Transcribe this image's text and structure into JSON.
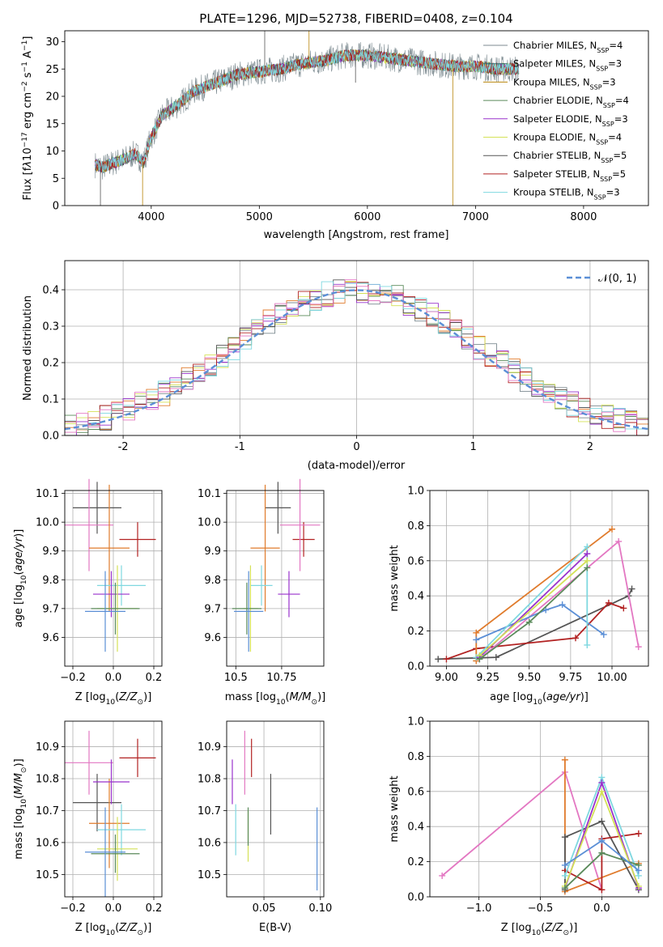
{
  "chart_data": [
    {
      "id": "spectrum",
      "type": "line",
      "title": "PLATE=1296, MJD=52738, FIBERID=0408, z=0.104",
      "xlabel": "wavelength [Angstrom, rest frame]",
      "ylabel": "Flux [f_λ10^-17 erg cm^-2 s^-1 A^-1]",
      "xlim": [
        3200,
        8600
      ],
      "ylim": [
        0,
        32
      ],
      "xticks": [
        4000,
        5000,
        6000,
        7000,
        8000
      ],
      "yticks": [
        0,
        5,
        10,
        15,
        20,
        25,
        30
      ],
      "grid": false,
      "legend_position": "right",
      "continuum": {
        "x": [
          3480,
          3550,
          3650,
          3750,
          3850,
          3930,
          3990,
          4100,
          4250,
          4400,
          4600,
          4800,
          5000,
          5200,
          5400,
          5600,
          5800,
          6000,
          6200,
          6400,
          6600,
          6800,
          7000,
          7200,
          7400
        ],
        "y": [
          7.5,
          7.0,
          7.8,
          8.5,
          9.5,
          8.0,
          12.0,
          16.5,
          18.5,
          21.0,
          22.5,
          24.0,
          24.5,
          25.0,
          26.0,
          26.5,
          27.5,
          27.5,
          27.0,
          26.5,
          26.0,
          25.5,
          25.5,
          25.0,
          25.0
        ]
      },
      "series": [
        {
          "name": "Chabrier MILES, N$_{SSP}$=4",
          "color": "#7c8a90"
        },
        {
          "name": "Salpeter MILES, N$_{SSP}$=3",
          "color": "#2d6a6a"
        },
        {
          "name": "Kroupa MILES, N$_{SSP}$=3",
          "color": "#b8860b"
        },
        {
          "name": "Chabrier ELODIE, N$_{SSP}$=4",
          "color": "#5a8a5a"
        },
        {
          "name": "Salpeter ELODIE, N$_{SSP}$=3",
          "color": "#9932cc"
        },
        {
          "name": "Kroupa ELODIE, N$_{SSP}$=4",
          "color": "#d4e157"
        },
        {
          "name": "Chabrier STELIB, N$_{SSP}$=5",
          "color": "#555555"
        },
        {
          "name": "Salpeter STELIB, N$_{SSP}$=5",
          "color": "#b22222"
        },
        {
          "name": "Kroupa STELIB, N$_{SSP}$=3",
          "color": "#7fd8e0"
        }
      ]
    },
    {
      "id": "residuals",
      "type": "histogram",
      "xlabel": "(data-model)/error",
      "ylabel": "Normed distribution",
      "xlim": [
        -2.5,
        2.5
      ],
      "ylim": [
        0,
        0.48
      ],
      "xticks": [
        -2,
        -1,
        0,
        1,
        2
      ],
      "yticks": [
        0.0,
        0.1,
        0.2,
        0.3,
        0.4
      ],
      "grid": true,
      "bin_width": 0.1,
      "legend_position": "top-right",
      "gaussian_label": "$\\mathcal{N}(0,1)$",
      "gaussian_color": "#5b8fd6",
      "histogram_colors": [
        "#7c8a90",
        "#e07b2c",
        "#5a8a5a",
        "#9932cc",
        "#d4e157",
        "#555555",
        "#b22222",
        "#7fd8e0",
        "#e377c2"
      ]
    },
    {
      "id": "age-vs-Z",
      "type": "scatter",
      "xlabel": "Z [log10(Z/Z⊙)]",
      "ylabel": "age  [log10(age/yr)]",
      "xlim": [
        -0.24,
        0.24
      ],
      "ylim": [
        9.5,
        10.11
      ],
      "xticks": [
        -0.2,
        0.0,
        0.2
      ],
      "xticklabels": [
        "−0.2",
        "0.0",
        "0.2"
      ],
      "yticks": [
        9.6,
        9.7,
        9.8,
        9.9,
        10.0,
        10.1
      ],
      "grid": true,
      "points": [
        {
          "x": 0.12,
          "xerr": 0.09,
          "y": 9.94,
          "yerr": 0.06,
          "color": "#b22222"
        },
        {
          "x": -0.08,
          "xerr": 0.12,
          "y": 10.05,
          "yerr": 0.09,
          "color": "#555555"
        },
        {
          "x": -0.12,
          "xerr": 0.12,
          "y": 9.99,
          "yerr": 0.16,
          "color": "#e377c2"
        },
        {
          "x": -0.02,
          "xerr": 0.1,
          "y": 9.91,
          "yerr": 0.22,
          "color": "#e07b2c"
        },
        {
          "x": 0.04,
          "xerr": 0.12,
          "y": 9.78,
          "yerr": 0.07,
          "color": "#7fd8e0"
        },
        {
          "x": -0.01,
          "xerr": 0.09,
          "y": 9.75,
          "yerr": 0.08,
          "color": "#9932cc"
        },
        {
          "x": 0.02,
          "xerr": 0.1,
          "y": 9.7,
          "yerr": 0.15,
          "color": "#d4e157"
        },
        {
          "x": 0.01,
          "xerr": 0.12,
          "y": 9.7,
          "yerr": 0.09,
          "color": "#5a8a5a"
        },
        {
          "x": -0.04,
          "xerr": 0.1,
          "y": 9.69,
          "yerr": 0.14,
          "color": "#5b8fd6"
        }
      ]
    },
    {
      "id": "age-vs-mass",
      "type": "scatter",
      "xlabel": "mass [log10(M/M⊙)]",
      "ylabel": "",
      "xlim": [
        10.45,
        10.98
      ],
      "ylim": [
        9.5,
        10.11
      ],
      "xticks": [
        10.5,
        10.75
      ],
      "yticks": [
        9.6,
        9.7,
        9.8,
        9.9,
        10.0,
        10.1
      ],
      "grid": true,
      "points": [
        {
          "x": 10.87,
          "xerr": 0.06,
          "y": 9.94,
          "yerr": 0.06,
          "color": "#b22222"
        },
        {
          "x": 10.73,
          "xerr": 0.07,
          "y": 10.05,
          "yerr": 0.09,
          "color": "#555555"
        },
        {
          "x": 10.85,
          "xerr": 0.11,
          "y": 9.99,
          "yerr": 0.16,
          "color": "#e377c2"
        },
        {
          "x": 10.66,
          "xerr": 0.08,
          "y": 9.91,
          "yerr": 0.22,
          "color": "#e07b2c"
        },
        {
          "x": 10.64,
          "xerr": 0.06,
          "y": 9.78,
          "yerr": 0.07,
          "color": "#7fd8e0"
        },
        {
          "x": 10.79,
          "xerr": 0.06,
          "y": 9.75,
          "yerr": 0.08,
          "color": "#9932cc"
        },
        {
          "x": 10.58,
          "xerr": 0.04,
          "y": 9.7,
          "yerr": 0.15,
          "color": "#d4e157"
        },
        {
          "x": 10.56,
          "xerr": 0.08,
          "y": 9.7,
          "yerr": 0.09,
          "color": "#5a8a5a"
        },
        {
          "x": 10.57,
          "xerr": 0.08,
          "y": 9.69,
          "yerr": 0.14,
          "color": "#5b8fd6"
        }
      ]
    },
    {
      "id": "weight-vs-age",
      "type": "line",
      "xlabel": "age  [log10(age/yr)]",
      "ylabel": "mass weight",
      "xlim": [
        8.9,
        10.22
      ],
      "ylim": [
        0,
        1.0
      ],
      "xticks": [
        9.0,
        9.25,
        9.5,
        9.75,
        10.0
      ],
      "xticklabels": [
        "9.00",
        "9.25",
        "9.50",
        "9.75",
        "10.00"
      ],
      "yticks": [
        0.0,
        0.2,
        0.4,
        0.6,
        0.8,
        1.0
      ],
      "grid": true,
      "series": [
        {
          "color": "#555555",
          "points": [
            [
              8.95,
              0.04
            ],
            [
              9.3,
              0.05
            ],
            [
              10.1,
              0.4
            ],
            [
              10.12,
              0.44
            ]
          ]
        },
        {
          "color": "#b22222",
          "points": [
            [
              9.0,
              0.04
            ],
            [
              9.18,
              0.1
            ],
            [
              9.78,
              0.16
            ],
            [
              9.98,
              0.36
            ],
            [
              10.07,
              0.33
            ]
          ]
        },
        {
          "color": "#e07b2c",
          "points": [
            [
              9.18,
              0.03
            ],
            [
              9.18,
              0.19
            ],
            [
              10.0,
              0.78
            ]
          ]
        },
        {
          "color": "#e377c2",
          "points": [
            [
              9.2,
              0.04
            ],
            [
              10.04,
              0.71
            ],
            [
              10.16,
              0.11
            ]
          ]
        },
        {
          "color": "#5b8fd6",
          "points": [
            [
              9.18,
              0.15
            ],
            [
              9.6,
              0.32
            ],
            [
              9.7,
              0.35
            ],
            [
              9.95,
              0.18
            ]
          ]
        },
        {
          "color": "#7fd8e0",
          "points": [
            [
              9.18,
              0.05
            ],
            [
              9.85,
              0.68
            ],
            [
              9.85,
              0.12
            ]
          ]
        },
        {
          "color": "#9932cc",
          "points": [
            [
              9.2,
              0.05
            ],
            [
              9.85,
              0.64
            ]
          ]
        },
        {
          "color": "#d4e157",
          "points": [
            [
              9.2,
              0.06
            ],
            [
              9.85,
              0.6
            ]
          ]
        },
        {
          "color": "#5a8a5a",
          "points": [
            [
              9.2,
              0.04
            ],
            [
              9.5,
              0.25
            ],
            [
              9.85,
              0.56
            ]
          ]
        }
      ]
    },
    {
      "id": "mass-vs-Z",
      "type": "scatter",
      "xlabel": "Z [log10(Z/Z⊙)]",
      "ylabel": "mass [log10(M/M⊙)]",
      "xlim": [
        -0.24,
        0.24
      ],
      "ylim": [
        10.43,
        10.98
      ],
      "xticks": [
        -0.2,
        0.0,
        0.2
      ],
      "xticklabels": [
        "−0.2",
        "0.0",
        "0.2"
      ],
      "yticks": [
        10.5,
        10.6,
        10.7,
        10.8,
        10.9
      ],
      "grid": true,
      "points": [
        {
          "x": 0.12,
          "xerr": 0.09,
          "y": 10.865,
          "yerr": 0.06,
          "color": "#b22222"
        },
        {
          "x": -0.08,
          "xerr": 0.12,
          "y": 10.725,
          "yerr": 0.09,
          "color": "#555555"
        },
        {
          "x": -0.12,
          "xerr": 0.12,
          "y": 10.85,
          "yerr": 0.1,
          "color": "#e377c2"
        },
        {
          "x": -0.02,
          "xerr": 0.1,
          "y": 10.66,
          "yerr": 0.14,
          "color": "#e07b2c"
        },
        {
          "x": 0.04,
          "xerr": 0.12,
          "y": 10.64,
          "yerr": 0.08,
          "color": "#7fd8e0"
        },
        {
          "x": -0.01,
          "xerr": 0.09,
          "y": 10.79,
          "yerr": 0.07,
          "color": "#9932cc"
        },
        {
          "x": 0.02,
          "xerr": 0.1,
          "y": 10.58,
          "yerr": 0.1,
          "color": "#d4e157"
        },
        {
          "x": 0.01,
          "xerr": 0.12,
          "y": 10.565,
          "yerr": 0.06,
          "color": "#5a8a5a"
        },
        {
          "x": -0.04,
          "xerr": 0.1,
          "y": 10.57,
          "yerr": 0.14,
          "color": "#5b8fd6"
        }
      ]
    },
    {
      "id": "mass-vs-ebv",
      "type": "scatter",
      "xlabel": "E(B-V)",
      "ylabel": "",
      "xlim": [
        0.017,
        0.103
      ],
      "ylim": [
        10.43,
        10.98
      ],
      "xticks": [
        0.05,
        0.1
      ],
      "xticklabels": [
        "0.05",
        "0.10"
      ],
      "yticks": [
        10.5,
        10.6,
        10.7,
        10.8,
        10.9
      ],
      "grid": true,
      "points": [
        {
          "x": 0.039,
          "xerr": 0,
          "y": 10.865,
          "yerr": 0.06,
          "color": "#b22222"
        },
        {
          "x": 0.056,
          "xerr": 0,
          "y": 10.72,
          "yerr": 0.095,
          "color": "#555555"
        },
        {
          "x": 0.033,
          "xerr": 0,
          "y": 10.85,
          "yerr": 0.1,
          "color": "#e377c2"
        },
        {
          "x": 0.036,
          "xerr": 0,
          "y": 10.62,
          "yerr": 0.08,
          "color": "#d4e157"
        },
        {
          "x": 0.022,
          "xerr": 0,
          "y": 10.79,
          "yerr": 0.07,
          "color": "#9932cc"
        },
        {
          "x": 0.025,
          "xerr": 0,
          "y": 10.64,
          "yerr": 0.08,
          "color": "#7fd8e0"
        },
        {
          "x": 0.036,
          "xerr": 0,
          "y": 10.65,
          "yerr": 0.06,
          "color": "#5a8a5a"
        },
        {
          "x": 0.097,
          "xerr": 0,
          "y": 10.58,
          "yerr": 0.13,
          "color": "#5b8fd6"
        }
      ]
    },
    {
      "id": "weight-vs-Z",
      "type": "line",
      "xlabel": "Z [log10(Z/Z⊙)]",
      "ylabel": "mass weight",
      "xlim": [
        -1.4,
        0.38
      ],
      "ylim": [
        0,
        1.0
      ],
      "xticks": [
        -1.0,
        -0.5,
        0.0
      ],
      "xticklabels": [
        "−1.0",
        "−0.5",
        "0.0"
      ],
      "yticks": [
        0.0,
        0.2,
        0.4,
        0.6,
        0.8,
        1.0
      ],
      "grid": true,
      "series": [
        {
          "color": "#e377c2",
          "points": [
            [
              -1.3,
              0.12
            ],
            [
              -0.3,
              0.71
            ],
            [
              0.0,
              0.04
            ]
          ]
        },
        {
          "color": "#e07b2c",
          "points": [
            [
              -0.3,
              0.78
            ],
            [
              -0.3,
              0.03
            ],
            [
              0.3,
              0.19
            ]
          ]
        },
        {
          "color": "#555555",
          "points": [
            [
              -0.3,
              0.04
            ],
            [
              -0.3,
              0.34
            ],
            [
              0.0,
              0.43
            ],
            [
              0.3,
              0.04
            ]
          ]
        },
        {
          "color": "#b22222",
          "points": [
            [
              -0.3,
              0.15
            ],
            [
              0.0,
              0.04
            ],
            [
              0.0,
              0.33
            ],
            [
              0.3,
              0.36
            ]
          ]
        },
        {
          "color": "#7fd8e0",
          "points": [
            [
              -0.3,
              0.12
            ],
            [
              0.0,
              0.68
            ],
            [
              0.3,
              0.12
            ]
          ]
        },
        {
          "color": "#9932cc",
          "points": [
            [
              -0.3,
              0.05
            ],
            [
              0.0,
              0.65
            ],
            [
              0.3,
              0.05
            ]
          ]
        },
        {
          "color": "#d4e157",
          "points": [
            [
              -0.3,
              0.06
            ],
            [
              0.0,
              0.6
            ],
            [
              0.3,
              0.06
            ]
          ]
        },
        {
          "color": "#5a8a5a",
          "points": [
            [
              -0.3,
              0.05
            ],
            [
              0.0,
              0.25
            ],
            [
              0.3,
              0.18
            ]
          ]
        },
        {
          "color": "#5b8fd6",
          "points": [
            [
              -0.3,
              0.18
            ],
            [
              0.0,
              0.32
            ],
            [
              0.3,
              0.15
            ]
          ]
        }
      ]
    }
  ]
}
